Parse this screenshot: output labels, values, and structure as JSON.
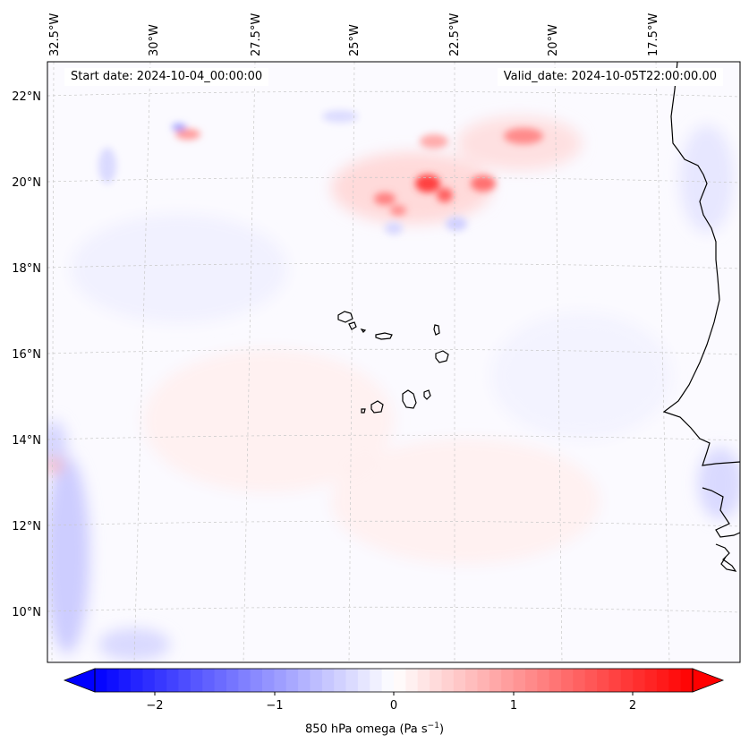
{
  "header": {
    "start_date": "Start date: 2024-10-04_00:00:00",
    "valid_date": "Valid_date: 2024-10-05T22:00:00.00"
  },
  "map": {
    "lon_labels": [
      "32.5°W",
      "30°W",
      "27.5°W",
      "25°W",
      "22.5°W",
      "20°W",
      "17.5°W"
    ],
    "lat_labels": [
      "22°N",
      "20°N",
      "18°N",
      "16°N",
      "14°N",
      "12°N",
      "10°N"
    ],
    "coastline_color": "#000000",
    "gridline_color": "#bbbbbb"
  },
  "colorbar": {
    "tick_labels": [
      "−2",
      "−1",
      "0",
      "1",
      "2"
    ],
    "label_main": "850 hPa omega (Pa s",
    "label_exp": "−1",
    "label_close": ")",
    "min_color": "#0000ff",
    "mid_color": "#ffffff",
    "max_color": "#ff0000"
  }
}
